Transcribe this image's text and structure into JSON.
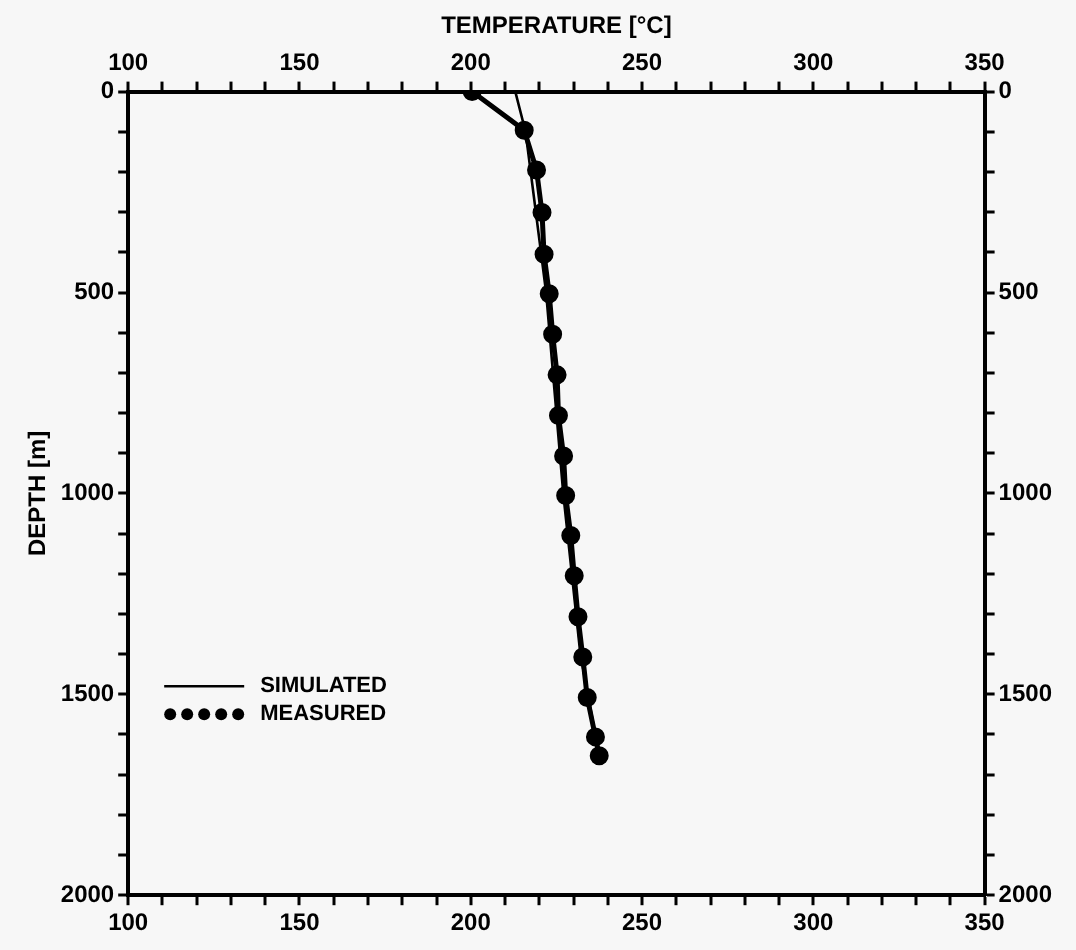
{
  "chart_data": {
    "type": "line",
    "x2label": "TEMPERATURE [°C]",
    "ylabel": "DEPTH [m]",
    "series": [
      {
        "name": "SIMULATED",
        "color": "#000000",
        "marker": "none",
        "x": [
          213,
          216,
          222,
          227,
          232,
          237.5
        ],
        "values": [
          0,
          100,
          500,
          1000,
          1400,
          1653
        ]
      },
      {
        "name": "MEASURED",
        "color": "#000000",
        "marker": "circle",
        "x": [
          200.4,
          215.6,
          219.2,
          220.8,
          221.4,
          222.9,
          223.9,
          225.2,
          225.6,
          227.1,
          227.7,
          229.2,
          230.2,
          231.3,
          232.7,
          234,
          236.4,
          237.5
        ],
        "values": [
          0,
          96,
          195,
          301,
          405,
          503,
          604,
          705,
          806,
          907,
          1005,
          1105,
          1205,
          1307,
          1407,
          1508,
          1606,
          1653
        ]
      }
    ],
    "xlim": [
      100,
      350
    ],
    "xticks": [
      100,
      {
        "value": 110,
        "label": null
      },
      {
        "value": 120,
        "label": null
      },
      {
        "value": 130,
        "label": null
      },
      {
        "value": 140,
        "label": null
      },
      150,
      {
        "value": 160,
        "label": null
      },
      {
        "value": 170,
        "label": null
      },
      {
        "value": 180,
        "label": null
      },
      {
        "value": 190,
        "label": null
      },
      200,
      {
        "value": 210,
        "label": null
      },
      {
        "value": 220,
        "label": null
      },
      {
        "value": 230,
        "label": null
      },
      {
        "value": 240,
        "label": null
      },
      250,
      {
        "value": 260,
        "label": null
      },
      {
        "value": 270,
        "label": null
      },
      {
        "value": 280,
        "label": null
      },
      {
        "value": 290,
        "label": null
      },
      300,
      {
        "value": 310,
        "label": null
      },
      {
        "value": 320,
        "label": null
      },
      {
        "value": 330,
        "label": null
      },
      {
        "value": 340,
        "label": null
      },
      350
    ],
    "x2lim": [
      100,
      350
    ],
    "x2ticks": [
      100,
      {
        "value": 110,
        "label": null
      },
      {
        "value": 120,
        "label": null
      },
      {
        "value": 130,
        "label": null
      },
      {
        "value": 140,
        "label": null
      },
      150,
      {
        "value": 160,
        "label": null
      },
      {
        "value": 170,
        "label": null
      },
      {
        "value": 180,
        "label": null
      },
      {
        "value": 190,
        "label": null
      },
      200,
      {
        "value": 210,
        "label": null
      },
      {
        "value": 220,
        "label": null
      },
      {
        "value": 230,
        "label": null
      },
      {
        "value": 240,
        "label": null
      },
      250,
      {
        "value": 260,
        "label": null
      },
      {
        "value": 270,
        "label": null
      },
      {
        "value": 280,
        "label": null
      },
      {
        "value": 290,
        "label": null
      },
      300,
      {
        "value": 310,
        "label": null
      },
      {
        "value": 320,
        "label": null
      },
      {
        "value": 330,
        "label": null
      },
      {
        "value": 340,
        "label": null
      },
      350
    ],
    "ylim": [
      2000,
      0
    ],
    "yticks": [
      0,
      {
        "value": 100,
        "label": null
      },
      {
        "value": 200,
        "label": null
      },
      {
        "value": 300,
        "label": null
      },
      {
        "value": 400,
        "label": null
      },
      500,
      {
        "value": 600,
        "label": null
      },
      {
        "value": 700,
        "label": null
      },
      {
        "value": 800,
        "label": null
      },
      {
        "value": 900,
        "label": null
      },
      1000,
      {
        "value": 1100,
        "label": null
      },
      {
        "value": 1200,
        "label": null
      },
      {
        "value": 1300,
        "label": null
      },
      {
        "value": 1400,
        "label": null
      },
      1500,
      {
        "value": 1600,
        "label": null
      },
      {
        "value": 1700,
        "label": null
      },
      {
        "value": 1800,
        "label": null
      },
      {
        "value": 1900,
        "label": null
      },
      2000
    ],
    "y2lim": [
      2000,
      0
    ],
    "y2ticks": [
      0,
      {
        "value": 100,
        "label": null
      },
      {
        "value": 200,
        "label": null
      },
      {
        "value": 300,
        "label": null
      },
      {
        "value": 400,
        "label": null
      },
      500,
      {
        "value": 600,
        "label": null
      },
      {
        "value": 700,
        "label": null
      },
      {
        "value": 800,
        "label": null
      },
      {
        "value": 900,
        "label": null
      },
      1000,
      {
        "value": 1100,
        "label": null
      },
      {
        "value": 1200,
        "label": null
      },
      {
        "value": 1300,
        "label": null
      },
      {
        "value": 1400,
        "label": null
      },
      1500,
      {
        "value": 1600,
        "label": null
      },
      {
        "value": 1700,
        "label": null
      },
      {
        "value": 1800,
        "label": null
      },
      {
        "value": 1900,
        "label": null
      },
      2000
    ],
    "grid": false,
    "legend": "bottom left",
    "line_style": "solid"
  }
}
